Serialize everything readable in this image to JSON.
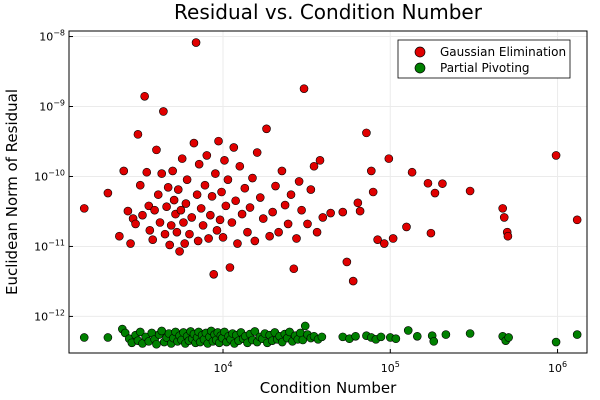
{
  "chart_data": {
    "type": "scatter",
    "title": "Residual vs. Condition Number",
    "xlabel": "Condition Number",
    "ylabel": "Euclidean Norm of Residual",
    "xscale": "log",
    "yscale": "log",
    "xlim": [
      1200,
      1500000
    ],
    "ylim": [
      3e-13,
      1.2e-08
    ],
    "x_ticks": [
      {
        "value": 10000,
        "base": "10",
        "exp": "4"
      },
      {
        "value": 100000,
        "base": "10",
        "exp": "5"
      },
      {
        "value": 1000000,
        "base": "10",
        "exp": "6"
      }
    ],
    "y_ticks": [
      {
        "value": 1e-12,
        "base": "10",
        "exp": "−12"
      },
      {
        "value": 1e-11,
        "base": "10",
        "exp": "−11"
      },
      {
        "value": 1e-10,
        "base": "10",
        "exp": "−10"
      },
      {
        "value": 1e-09,
        "base": "10",
        "exp": "−9"
      },
      {
        "value": 1e-08,
        "base": "10",
        "exp": "−8"
      }
    ],
    "grid": true,
    "legend_position": "top-right",
    "series": [
      {
        "name": "Gaussian Elimination",
        "color": "#e00000",
        "points": [
          [
            1480,
            3.5e-11
          ],
          [
            2050,
            5.8e-11
          ],
          [
            2400,
            1.4e-11
          ],
          [
            2550,
            1.2e-10
          ],
          [
            2700,
            3.2e-11
          ],
          [
            2800,
            1.1e-11
          ],
          [
            2900,
            2.5e-11
          ],
          [
            3000,
            2.1e-11
          ],
          [
            3100,
            4e-10
          ],
          [
            3200,
            7.5e-11
          ],
          [
            3300,
            2.8e-11
          ],
          [
            3400,
            1.4e-09
          ],
          [
            3500,
            1.15e-10
          ],
          [
            3600,
            3.8e-11
          ],
          [
            3650,
            1.7e-11
          ],
          [
            3800,
            1.25e-11
          ],
          [
            3900,
            3.3e-11
          ],
          [
            4000,
            2.4e-10
          ],
          [
            4100,
            5.5e-11
          ],
          [
            4200,
            2.2e-11
          ],
          [
            4300,
            1.1e-10
          ],
          [
            4400,
            8.5e-10
          ],
          [
            4500,
            1.5e-11
          ],
          [
            4600,
            3.7e-11
          ],
          [
            4700,
            7e-11
          ],
          [
            4800,
            1.05e-11
          ],
          [
            4900,
            2e-11
          ],
          [
            5000,
            1.2e-10
          ],
          [
            5100,
            4.6e-11
          ],
          [
            5200,
            2.9e-11
          ],
          [
            5300,
            1.6e-11
          ],
          [
            5400,
            6.5e-11
          ],
          [
            5500,
            8.5e-12
          ],
          [
            5600,
            3.3e-11
          ],
          [
            5700,
            1.8e-10
          ],
          [
            5800,
            2.2e-11
          ],
          [
            5900,
            1.1e-11
          ],
          [
            6000,
            4.1e-11
          ],
          [
            6100,
            9e-11
          ],
          [
            6300,
            1.5e-11
          ],
          [
            6500,
            2.6e-11
          ],
          [
            6700,
            3e-10
          ],
          [
            6900,
            8.2e-09
          ],
          [
            7000,
            5.5e-11
          ],
          [
            7100,
            1.2e-11
          ],
          [
            7200,
            1.5e-10
          ],
          [
            7400,
            3.5e-11
          ],
          [
            7600,
            2e-11
          ],
          [
            7800,
            7.5e-11
          ],
          [
            8000,
            2e-10
          ],
          [
            8200,
            1.3e-11
          ],
          [
            8400,
            2.8e-11
          ],
          [
            8600,
            5.2e-11
          ],
          [
            8800,
            4e-12
          ],
          [
            9000,
            1.1e-10
          ],
          [
            9200,
            1.7e-11
          ],
          [
            9400,
            3.2e-10
          ],
          [
            9600,
            2.4e-11
          ],
          [
            9800,
            6e-11
          ],
          [
            10000,
            1.35e-11
          ],
          [
            10200,
            1.7e-10
          ],
          [
            10400,
            3.8e-11
          ],
          [
            10700,
            9e-11
          ],
          [
            11000,
            5e-12
          ],
          [
            11300,
            2.2e-11
          ],
          [
            11600,
            2.6e-10
          ],
          [
            11900,
            4.5e-11
          ],
          [
            12200,
            1.1e-11
          ],
          [
            12600,
            1.4e-10
          ],
          [
            13000,
            2.9e-11
          ],
          [
            13500,
            6.8e-11
          ],
          [
            14000,
            1.6e-11
          ],
          [
            14500,
            3.6e-11
          ],
          [
            15000,
            9.5e-11
          ],
          [
            15500,
            1.2e-11
          ],
          [
            16000,
            2.2e-10
          ],
          [
            16700,
            5e-11
          ],
          [
            17400,
            2.5e-11
          ],
          [
            18200,
            4.8e-10
          ],
          [
            19000,
            1.4e-11
          ],
          [
            19800,
            3.1e-11
          ],
          [
            20600,
            7.3e-11
          ],
          [
            21500,
            1.6e-11
          ],
          [
            22500,
            1.2e-10
          ],
          [
            23500,
            3.9e-11
          ],
          [
            24500,
            2.1e-11
          ],
          [
            25500,
            5.5e-11
          ],
          [
            26500,
            4.8e-12
          ],
          [
            27500,
            1.3e-11
          ],
          [
            28500,
            8.5e-11
          ],
          [
            29500,
            3.3e-11
          ],
          [
            30500,
            1.8e-09
          ],
          [
            32000,
            2.1e-11
          ],
          [
            33500,
            6.5e-11
          ],
          [
            35000,
            1.4e-10
          ],
          [
            36500,
            1.6e-11
          ],
          [
            38000,
            1.7e-10
          ],
          [
            39500,
            2.6e-11
          ],
          [
            44000,
            3e-11
          ],
          [
            52000,
            3.1e-11
          ],
          [
            55000,
            6e-12
          ],
          [
            60000,
            3.2e-12
          ],
          [
            64000,
            4.2e-11
          ],
          [
            66000,
            3.2e-11
          ],
          [
            72000,
            4.2e-10
          ],
          [
            77000,
            1.2e-10
          ],
          [
            79000,
            6e-11
          ],
          [
            84000,
            1.25e-11
          ],
          [
            92000,
            1.1e-11
          ],
          [
            98000,
            1.8e-10
          ],
          [
            104000,
            1.3e-11
          ],
          [
            125000,
            1.9e-11
          ],
          [
            135000,
            1.15e-10
          ],
          [
            168000,
            8e-11
          ],
          [
            175000,
            1.55e-11
          ],
          [
            185000,
            5.8e-11
          ],
          [
            205000,
            7.9e-11
          ],
          [
            300000,
            6.2e-11
          ],
          [
            470000,
            3.5e-11
          ],
          [
            480000,
            2.6e-11
          ],
          [
            500000,
            1.6e-11
          ],
          [
            505000,
            1.4e-11
          ],
          [
            980000,
            2e-10
          ],
          [
            1310000,
            2.4e-11
          ]
        ]
      },
      {
        "name": "Partial Pivoting",
        "color": "#008000",
        "points": [
          [
            1480,
            5e-13
          ],
          [
            2050,
            5e-13
          ],
          [
            2500,
            6.6e-13
          ],
          [
            2600,
            5.8e-13
          ],
          [
            2750,
            4.8e-13
          ],
          [
            2850,
            4.2e-13
          ],
          [
            3000,
            5.4e-13
          ],
          [
            3100,
            4.5e-13
          ],
          [
            3200,
            6e-13
          ],
          [
            3300,
            4.1e-13
          ],
          [
            3450,
            5.1e-13
          ],
          [
            3600,
            4.4e-13
          ],
          [
            3750,
            5.8e-13
          ],
          [
            3900,
            4.7e-13
          ],
          [
            4000,
            4e-13
          ],
          [
            4150,
            5.5e-13
          ],
          [
            4300,
            6.2e-13
          ],
          [
            4450,
            4.3e-13
          ],
          [
            4600,
            5e-13
          ],
          [
            4750,
            5.7e-13
          ],
          [
            4900,
            4.1e-13
          ],
          [
            5050,
            4.9e-13
          ],
          [
            5200,
            6e-13
          ],
          [
            5350,
            4.4e-13
          ],
          [
            5500,
            5.3e-13
          ],
          [
            5650,
            4.6e-13
          ],
          [
            5800,
            5.9e-13
          ],
          [
            5950,
            4.1e-13
          ],
          [
            6100,
            5.2e-13
          ],
          [
            6250,
            4.5e-13
          ],
          [
            6400,
            6.1e-13
          ],
          [
            6550,
            4.8e-13
          ],
          [
            6700,
            5.6e-13
          ],
          [
            6850,
            4.2e-13
          ],
          [
            7000,
            5e-13
          ],
          [
            7150,
            6e-13
          ],
          [
            7300,
            4.3e-13
          ],
          [
            7500,
            5.4e-13
          ],
          [
            7700,
            4.7e-13
          ],
          [
            7900,
            5.8e-13
          ],
          [
            8100,
            4.1e-13
          ],
          [
            8300,
            5.1e-13
          ],
          [
            8500,
            6.2e-13
          ],
          [
            8700,
            4.4e-13
          ],
          [
            8900,
            5.5e-13
          ],
          [
            9100,
            4.6e-13
          ],
          [
            9300,
            5.9e-13
          ],
          [
            9500,
            4.2e-13
          ],
          [
            9700,
            5.3e-13
          ],
          [
            9900,
            4.9e-13
          ],
          [
            10200,
            6e-13
          ],
          [
            10500,
            4.3e-13
          ],
          [
            10800,
            5.2e-13
          ],
          [
            11100,
            4.7e-13
          ],
          [
            11400,
            5.7e-13
          ],
          [
            11700,
            4.1e-13
          ],
          [
            12000,
            5.4e-13
          ],
          [
            12400,
            4.5e-13
          ],
          [
            12800,
            5.9e-13
          ],
          [
            13200,
            4.8e-13
          ],
          [
            13600,
            5.2e-13
          ],
          [
            14000,
            4.2e-13
          ],
          [
            14500,
            5.6e-13
          ],
          [
            15000,
            4.6e-13
          ],
          [
            15500,
            6.1e-13
          ],
          [
            16000,
            4.3e-13
          ],
          [
            16600,
            5.1e-13
          ],
          [
            17200,
            4.8e-13
          ],
          [
            17800,
            5.7e-13
          ],
          [
            18400,
            4.2e-13
          ],
          [
            19000,
            5.4e-13
          ],
          [
            19700,
            4.5e-13
          ],
          [
            20400,
            5.9e-13
          ],
          [
            21100,
            4.7e-13
          ],
          [
            21800,
            5.2e-13
          ],
          [
            22600,
            4.3e-13
          ],
          [
            23400,
            5.6e-13
          ],
          [
            24200,
            4.9e-13
          ],
          [
            25000,
            6e-13
          ],
          [
            26000,
            4.4e-13
          ],
          [
            27000,
            5.3e-13
          ],
          [
            28000,
            4.7e-13
          ],
          [
            29000,
            5.8e-13
          ],
          [
            30000,
            4.6e-13
          ],
          [
            31000,
            7.3e-13
          ],
          [
            32000,
            5.5e-13
          ],
          [
            33500,
            4.9e-13
          ],
          [
            35000,
            5.2e-13
          ],
          [
            37000,
            4.7e-13
          ],
          [
            39000,
            5.1e-13
          ],
          [
            52000,
            5.1e-13
          ],
          [
            57000,
            4.8e-13
          ],
          [
            62000,
            5.2e-13
          ],
          [
            72000,
            5.3e-13
          ],
          [
            77000,
            5e-13
          ],
          [
            82000,
            4.7e-13
          ],
          [
            88000,
            5.1e-13
          ],
          [
            100000,
            5e-13
          ],
          [
            108000,
            4.8e-13
          ],
          [
            128000,
            6.3e-13
          ],
          [
            145000,
            5.2e-13
          ],
          [
            178000,
            5.3e-13
          ],
          [
            182000,
            4.4e-13
          ],
          [
            215000,
            5.5e-13
          ],
          [
            300000,
            5.7e-13
          ],
          [
            470000,
            5.2e-13
          ],
          [
            490000,
            4.5e-13
          ],
          [
            510000,
            5e-13
          ],
          [
            980000,
            4.3e-13
          ],
          [
            1310000,
            5.5e-13
          ]
        ]
      }
    ]
  }
}
